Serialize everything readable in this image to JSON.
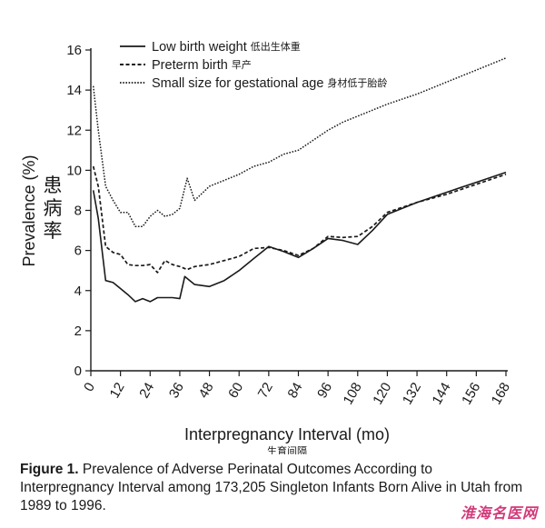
{
  "chart_data": {
    "type": "line",
    "ylabel": "Prevalence (%)",
    "ylabel_cn": "患病率",
    "xlabel": "Interpregnancy Interval (mo)",
    "xlabel_cn": "生育间隔",
    "xlim": [
      0,
      168
    ],
    "ylim": [
      0,
      16
    ],
    "x_ticks": [
      0,
      12,
      24,
      36,
      48,
      60,
      72,
      84,
      96,
      108,
      120,
      132,
      144,
      156,
      168
    ],
    "y_ticks": [
      0,
      2,
      4,
      6,
      8,
      10,
      12,
      14,
      16
    ],
    "legend_placement": "top-left",
    "grid": false,
    "series": [
      {
        "name": "Low birth weight",
        "name_cn": "低出生体重",
        "style": "solid",
        "points": [
          [
            1,
            9.0
          ],
          [
            3,
            7.6
          ],
          [
            6,
            4.5
          ],
          [
            9,
            4.4
          ],
          [
            12,
            4.1
          ],
          [
            15,
            3.8
          ],
          [
            18,
            3.45
          ],
          [
            21,
            3.6
          ],
          [
            24,
            3.45
          ],
          [
            27,
            3.65
          ],
          [
            30,
            3.65
          ],
          [
            33,
            3.65
          ],
          [
            36,
            3.6
          ],
          [
            38,
            4.7
          ],
          [
            42,
            4.3
          ],
          [
            48,
            4.2
          ],
          [
            54,
            4.5
          ],
          [
            60,
            5.0
          ],
          [
            66,
            5.6
          ],
          [
            72,
            6.2
          ],
          [
            78,
            5.95
          ],
          [
            84,
            5.65
          ],
          [
            90,
            6.1
          ],
          [
            96,
            6.6
          ],
          [
            102,
            6.5
          ],
          [
            108,
            6.3
          ],
          [
            114,
            7.0
          ],
          [
            120,
            7.8
          ],
          [
            132,
            8.4
          ],
          [
            144,
            8.9
          ],
          [
            156,
            9.4
          ],
          [
            168,
            9.9
          ]
        ]
      },
      {
        "name": "Preterm birth",
        "name_cn": "早产",
        "style": "dashed",
        "points": [
          [
            1,
            10.2
          ],
          [
            3,
            9.2
          ],
          [
            6,
            6.2
          ],
          [
            9,
            5.9
          ],
          [
            12,
            5.8
          ],
          [
            15,
            5.3
          ],
          [
            18,
            5.25
          ],
          [
            21,
            5.25
          ],
          [
            24,
            5.3
          ],
          [
            27,
            4.9
          ],
          [
            30,
            5.5
          ],
          [
            33,
            5.3
          ],
          [
            36,
            5.2
          ],
          [
            39,
            5.05
          ],
          [
            42,
            5.2
          ],
          [
            48,
            5.3
          ],
          [
            54,
            5.5
          ],
          [
            60,
            5.7
          ],
          [
            66,
            6.1
          ],
          [
            72,
            6.15
          ],
          [
            78,
            6.0
          ],
          [
            84,
            5.75
          ],
          [
            90,
            6.1
          ],
          [
            96,
            6.7
          ],
          [
            102,
            6.65
          ],
          [
            108,
            6.7
          ],
          [
            114,
            7.2
          ],
          [
            120,
            7.9
          ],
          [
            132,
            8.4
          ],
          [
            144,
            8.8
          ],
          [
            156,
            9.3
          ],
          [
            168,
            9.8
          ]
        ]
      },
      {
        "name": "Small size for gestational age",
        "name_cn": "身材低于胎龄",
        "style": "dotted",
        "points": [
          [
            1,
            14.2
          ],
          [
            3,
            12.0
          ],
          [
            6,
            9.2
          ],
          [
            9,
            8.5
          ],
          [
            12,
            7.9
          ],
          [
            15,
            7.9
          ],
          [
            18,
            7.2
          ],
          [
            21,
            7.2
          ],
          [
            24,
            7.7
          ],
          [
            27,
            8.0
          ],
          [
            30,
            7.7
          ],
          [
            33,
            7.8
          ],
          [
            36,
            8.1
          ],
          [
            39,
            9.6
          ],
          [
            42,
            8.5
          ],
          [
            48,
            9.2
          ],
          [
            54,
            9.5
          ],
          [
            60,
            9.8
          ],
          [
            66,
            10.2
          ],
          [
            72,
            10.4
          ],
          [
            78,
            10.8
          ],
          [
            84,
            11.0
          ],
          [
            90,
            11.5
          ],
          [
            96,
            12.0
          ],
          [
            102,
            12.4
          ],
          [
            108,
            12.7
          ],
          [
            114,
            13.0
          ],
          [
            120,
            13.3
          ],
          [
            132,
            13.8
          ],
          [
            144,
            14.4
          ],
          [
            156,
            15.0
          ],
          [
            168,
            15.6
          ]
        ]
      }
    ]
  },
  "caption": {
    "lead": "Figure 1.",
    "text": "Prevalence of Adverse Perinatal Outcomes According to Interpregnancy Interval among 173,205 Singleton Infants Born Alive in Utah from 1989 to 1996."
  },
  "watermark": "淮海名医网"
}
